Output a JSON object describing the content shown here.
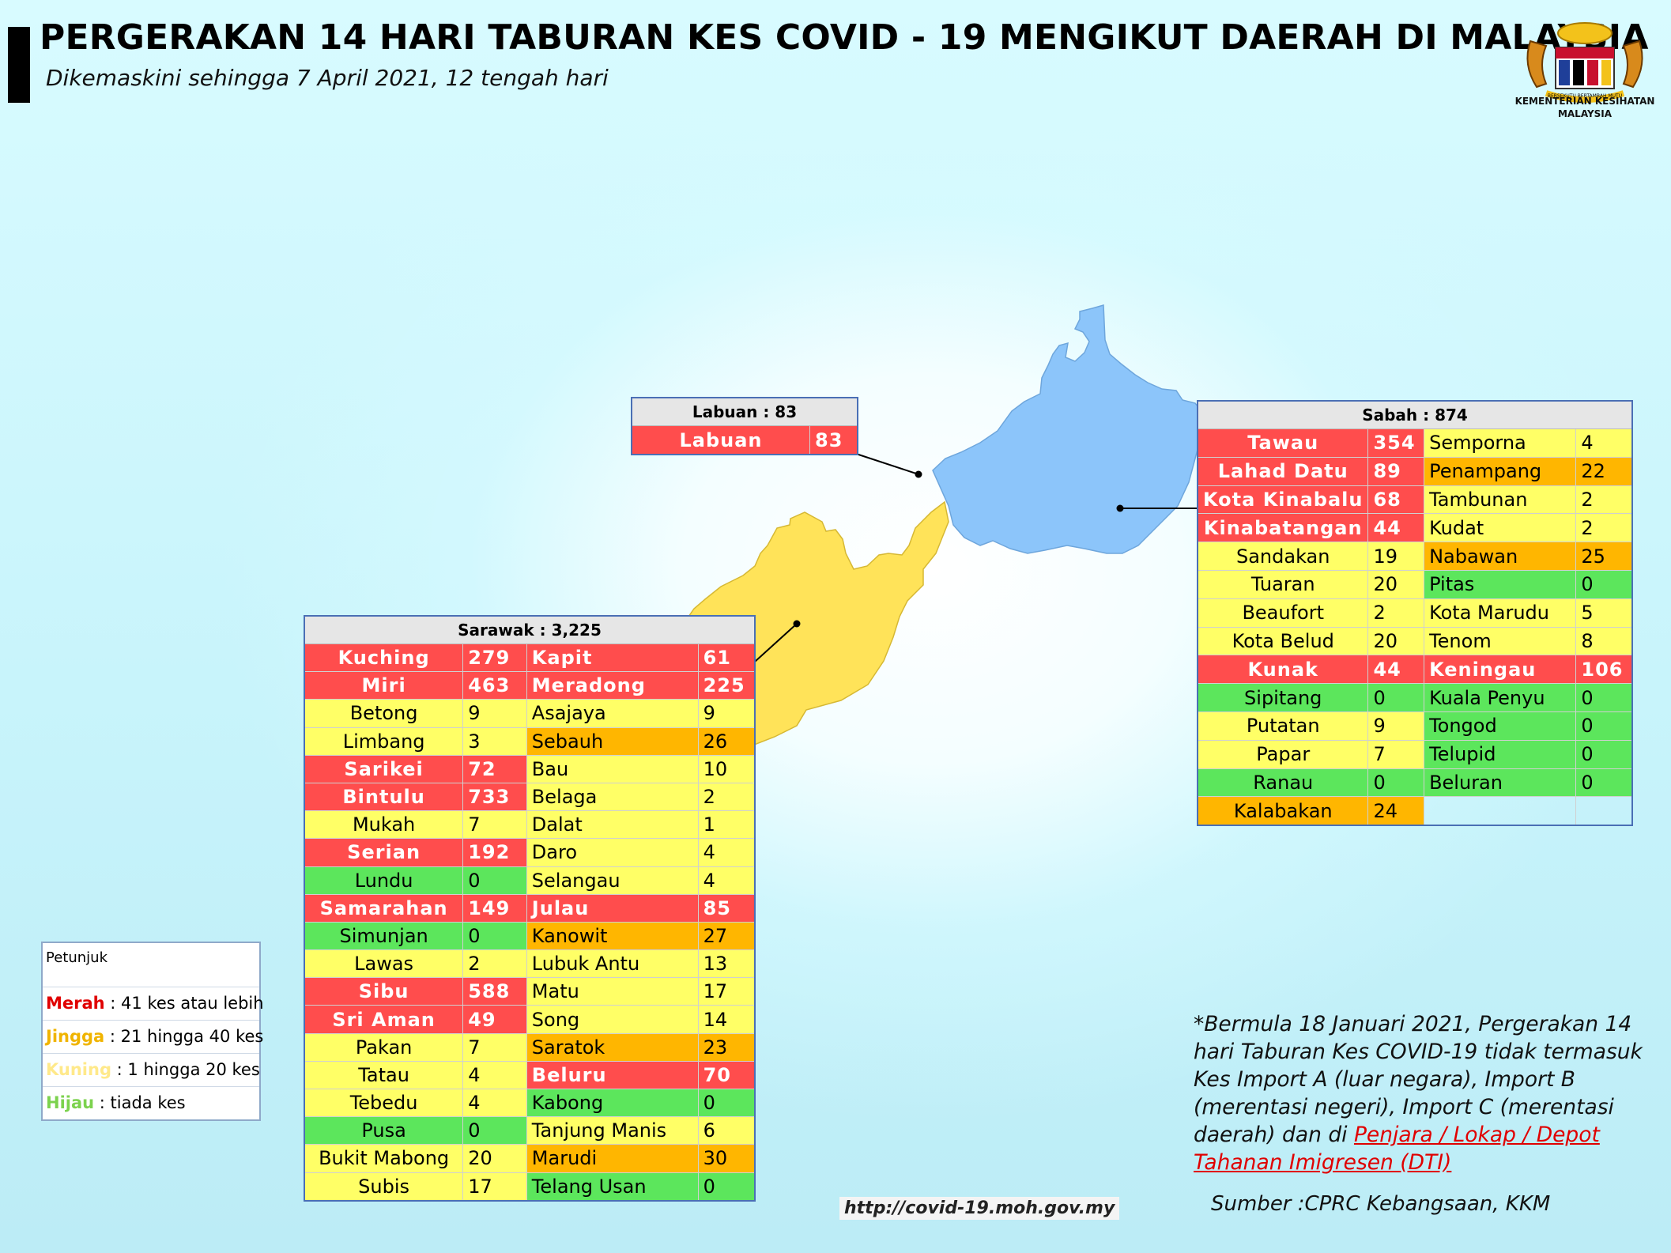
{
  "header": {
    "title": "PERGERAKAN 14 HARI TABURAN KES COVID - 19 MENGIKUT DAERAH DI MALAYSIA",
    "subtitle": "Dikemaskini sehingga 7 April 2021, 12 tengah hari",
    "logo_text_line1": "KEMENTERIAN KESIHATAN",
    "logo_text_line2": "MALAYSIA",
    "logo_motto": "BERSEKUTU BERTAMBAH MUTU"
  },
  "colors": {
    "red": "#ff4d4d",
    "orange": "#ffb600",
    "yellow": "#ffff66",
    "green": "#5ce65c",
    "sabah_fill": "#8cc5fa",
    "sarawak_fill": "#ffe359"
  },
  "labuan": {
    "title": "Labuan : 83",
    "district": "Labuan",
    "cases": "83",
    "level": "red"
  },
  "sabah": {
    "title": "Sabah : 874",
    "rows": [
      [
        {
          "n": "Tawau",
          "v": "354",
          "c": "red"
        },
        {
          "n": "Semporna",
          "v": "4",
          "c": "yel"
        }
      ],
      [
        {
          "n": "Lahad Datu",
          "v": "89",
          "c": "red"
        },
        {
          "n": "Penampang",
          "v": "22",
          "c": "org"
        }
      ],
      [
        {
          "n": "Kota Kinabalu",
          "v": "68",
          "c": "red"
        },
        {
          "n": "Tambunan",
          "v": "2",
          "c": "yel"
        }
      ],
      [
        {
          "n": "Kinabatangan",
          "v": "44",
          "c": "red"
        },
        {
          "n": "Kudat",
          "v": "2",
          "c": "yel"
        }
      ],
      [
        {
          "n": "Sandakan",
          "v": "19",
          "c": "yel"
        },
        {
          "n": "Nabawan",
          "v": "25",
          "c": "org"
        }
      ],
      [
        {
          "n": "Tuaran",
          "v": "20",
          "c": "yel"
        },
        {
          "n": "Pitas",
          "v": "0",
          "c": "grn"
        }
      ],
      [
        {
          "n": "Beaufort",
          "v": "2",
          "c": "yel"
        },
        {
          "n": "Kota Marudu",
          "v": "5",
          "c": "yel"
        }
      ],
      [
        {
          "n": "Kota Belud",
          "v": "20",
          "c": "yel"
        },
        {
          "n": "Tenom",
          "v": "8",
          "c": "yel"
        }
      ],
      [
        {
          "n": "Kunak",
          "v": "44",
          "c": "red"
        },
        {
          "n": "Keningau",
          "v": "106",
          "c": "red"
        }
      ],
      [
        {
          "n": "Sipitang",
          "v": "0",
          "c": "grn"
        },
        {
          "n": "Kuala Penyu",
          "v": "0",
          "c": "grn"
        }
      ],
      [
        {
          "n": "Putatan",
          "v": "9",
          "c": "yel"
        },
        {
          "n": "Tongod",
          "v": "0",
          "c": "grn"
        }
      ],
      [
        {
          "n": "Papar",
          "v": "7",
          "c": "yel"
        },
        {
          "n": "Telupid",
          "v": "0",
          "c": "grn"
        }
      ],
      [
        {
          "n": "Ranau",
          "v": "0",
          "c": "grn"
        },
        {
          "n": "Beluran",
          "v": "0",
          "c": "grn"
        }
      ],
      [
        {
          "n": "Kalabakan",
          "v": "24",
          "c": "org"
        },
        {
          "n": "",
          "v": "",
          "c": "emp"
        }
      ]
    ]
  },
  "sarawak": {
    "title": "Sarawak : 3,225",
    "rows": [
      [
        {
          "n": "Kuching",
          "v": "279",
          "c": "red"
        },
        {
          "n": "Kapit",
          "v": "61",
          "c": "red"
        }
      ],
      [
        {
          "n": "Miri",
          "v": "463",
          "c": "red"
        },
        {
          "n": "Meradong",
          "v": "225",
          "c": "red"
        }
      ],
      [
        {
          "n": "Betong",
          "v": "9",
          "c": "yel"
        },
        {
          "n": "Asajaya",
          "v": "9",
          "c": "yel"
        }
      ],
      [
        {
          "n": "Limbang",
          "v": "3",
          "c": "yel"
        },
        {
          "n": "Sebauh",
          "v": "26",
          "c": "org"
        }
      ],
      [
        {
          "n": "Sarikei",
          "v": "72",
          "c": "red"
        },
        {
          "n": "Bau",
          "v": "10",
          "c": "yel"
        }
      ],
      [
        {
          "n": "Bintulu",
          "v": "733",
          "c": "red"
        },
        {
          "n": "Belaga",
          "v": "2",
          "c": "yel"
        }
      ],
      [
        {
          "n": "Mukah",
          "v": "7",
          "c": "yel"
        },
        {
          "n": "Dalat",
          "v": "1",
          "c": "yel"
        }
      ],
      [
        {
          "n": "Serian",
          "v": "192",
          "c": "red"
        },
        {
          "n": "Daro",
          "v": "4",
          "c": "yel"
        }
      ],
      [
        {
          "n": "Lundu",
          "v": "0",
          "c": "grn"
        },
        {
          "n": "Selangau",
          "v": "4",
          "c": "yel"
        }
      ],
      [
        {
          "n": "Samarahan",
          "v": "149",
          "c": "red"
        },
        {
          "n": "Julau",
          "v": "85",
          "c": "red"
        }
      ],
      [
        {
          "n": "Simunjan",
          "v": "0",
          "c": "grn"
        },
        {
          "n": "Kanowit",
          "v": "27",
          "c": "org"
        }
      ],
      [
        {
          "n": "Lawas",
          "v": "2",
          "c": "yel"
        },
        {
          "n": "Lubuk Antu",
          "v": "13",
          "c": "yel"
        }
      ],
      [
        {
          "n": "Sibu",
          "v": "588",
          "c": "red"
        },
        {
          "n": "Matu",
          "v": "17",
          "c": "yel"
        }
      ],
      [
        {
          "n": "Sri Aman",
          "v": "49",
          "c": "red"
        },
        {
          "n": "Song",
          "v": "14",
          "c": "yel"
        }
      ],
      [
        {
          "n": "Pakan",
          "v": "7",
          "c": "yel"
        },
        {
          "n": "Saratok",
          "v": "23",
          "c": "org"
        }
      ],
      [
        {
          "n": "Tatau",
          "v": "4",
          "c": "yel"
        },
        {
          "n": "Beluru",
          "v": "70",
          "c": "red"
        }
      ],
      [
        {
          "n": "Tebedu",
          "v": "4",
          "c": "yel"
        },
        {
          "n": "Kabong",
          "v": "0",
          "c": "grn"
        }
      ],
      [
        {
          "n": "Pusa",
          "v": "0",
          "c": "grn"
        },
        {
          "n": "Tanjung Manis",
          "v": "6",
          "c": "yel"
        }
      ],
      [
        {
          "n": "Bukit Mabong",
          "v": "20",
          "c": "yel"
        },
        {
          "n": "Marudi",
          "v": "30",
          "c": "org"
        }
      ],
      [
        {
          "n": "Subis",
          "v": "17",
          "c": "yel"
        },
        {
          "n": "Telang Usan",
          "v": "0",
          "c": "grn"
        }
      ]
    ]
  },
  "legend": {
    "heading": "Petunjuk",
    "items": [
      {
        "key": "Merah",
        "desc": " : 41 kes atau lebih",
        "color": "#e00000"
      },
      {
        "key": "Jingga",
        "desc": " : 21 hingga 40 kes",
        "color": "#f0b400"
      },
      {
        "key": "Kuning",
        "desc": " : 1 hingga 20 kes",
        "color": "#ffe98a"
      },
      {
        "key": "Hijau",
        "desc": " : tiada kes",
        "color": "#7cd24e"
      }
    ]
  },
  "note": {
    "text": "*Bermula 18 Januari 2021, Pergerakan 14 hari Taburan Kes COVID-19 tidak termasuk Kes Import A (luar negara), Import B (merentasi negeri), Import C (merentasi daerah) dan di ",
    "link_text": "Penjara / Lokap / Depot Tahanan Imigresen (DTI)"
  },
  "source": "Sumber :CPRC Kebangsaan,  KKM",
  "url": "http://covid-19.moh.gov.my"
}
